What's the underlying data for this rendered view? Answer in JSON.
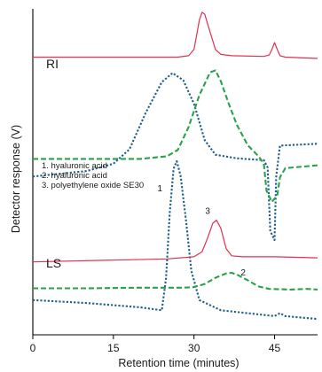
{
  "chart_data": {
    "type": "line",
    "xlabel": "Retention time (minutes)",
    "ylabel": "Detector response (V)",
    "xlim": [
      0,
      53
    ],
    "x_ticks": [
      {
        "value": 0,
        "label": "0"
      },
      {
        "value": 15,
        "label": "15"
      },
      {
        "value": 30,
        "label": "30"
      },
      {
        "value": 45,
        "label": "45"
      }
    ],
    "grid": false,
    "legend": {
      "placement": "middle-left",
      "entries": [
        "1.  hyaluronic acid",
        "2.  hyaluronic acid",
        "3.  polyethylene oxide SE30"
      ]
    },
    "panels": [
      {
        "label": "RI",
        "series": [
          {
            "id": "3",
            "color": "#e0314f",
            "style": "solid",
            "points": [
              [
                0,
                0.34
              ],
              [
                27,
                0.34
              ],
              [
                29,
                0.36
              ],
              [
                30,
                0.45
              ],
              [
                31,
                0.88
              ],
              [
                31.5,
                0.99
              ],
              [
                32,
                0.96
              ],
              [
                33,
                0.7
              ],
              [
                34,
                0.45
              ],
              [
                35,
                0.38
              ],
              [
                37,
                0.36
              ],
              [
                43,
                0.35
              ],
              [
                44,
                0.37
              ],
              [
                44.5,
                0.45
              ],
              [
                45,
                0.55
              ],
              [
                45.5,
                0.45
              ],
              [
                46,
                0.36
              ],
              [
                47,
                0.34
              ],
              [
                53,
                0.32
              ]
            ]
          },
          {
            "id": "1",
            "color": "#1f5f8b",
            "style": "dotted",
            "points": [
              [
                0,
                -0.25
              ],
              [
                10,
                -0.22
              ],
              [
                15,
                -0.18
              ],
              [
                18,
                -0.1
              ],
              [
                21,
                0.1
              ],
              [
                24,
                0.27
              ],
              [
                26,
                0.32
              ],
              [
                28,
                0.28
              ],
              [
                30,
                0.15
              ],
              [
                32,
                -0.05
              ],
              [
                34,
                -0.13
              ],
              [
                38,
                -0.15
              ],
              [
                43,
                -0.16
              ],
              [
                43.7,
                -0.2
              ],
              [
                44.2,
                -0.55
              ],
              [
                45,
                -0.6
              ],
              [
                45.3,
                -0.25
              ],
              [
                46,
                -0.08
              ],
              [
                53,
                -0.07
              ]
            ]
          },
          {
            "id": "2",
            "color": "#2aa14b",
            "style": "dashed",
            "points": [
              [
                0,
                -0.15
              ],
              [
                20,
                -0.15
              ],
              [
                25,
                -0.12
              ],
              [
                27,
                -0.05
              ],
              [
                29,
                0.2
              ],
              [
                31,
                0.55
              ],
              [
                33,
                0.8
              ],
              [
                34,
                0.82
              ],
              [
                35,
                0.7
              ],
              [
                36.5,
                0.45
              ],
              [
                38,
                0.22
              ],
              [
                40,
                0.0
              ],
              [
                42,
                -0.12
              ],
              [
                43,
                -0.2
              ],
              [
                43.5,
                -0.5
              ],
              [
                44.5,
                -0.62
              ],
              [
                45.5,
                -0.55
              ],
              [
                46,
                -0.35
              ],
              [
                47,
                -0.25
              ],
              [
                53,
                -0.22
              ]
            ]
          }
        ]
      },
      {
        "label": "LS",
        "series": [
          {
            "id": "1",
            "color": "#1f5f8b",
            "style": "dotted",
            "label": "1",
            "points": [
              [
                0,
                0.05
              ],
              [
                10,
                0.03
              ],
              [
                20,
                0.0
              ],
              [
                24,
                -0.02
              ],
              [
                24.8,
                0.2
              ],
              [
                25.5,
                0.65
              ],
              [
                26.2,
                0.95
              ],
              [
                26.8,
                1.0
              ],
              [
                27.5,
                0.9
              ],
              [
                28.5,
                0.6
              ],
              [
                29.5,
                0.25
              ],
              [
                31,
                0.05
              ],
              [
                35,
                -0.02
              ],
              [
                40,
                -0.04
              ],
              [
                45,
                -0.06
              ],
              [
                46,
                -0.04
              ],
              [
                47,
                -0.06
              ],
              [
                53,
                -0.08
              ]
            ]
          },
          {
            "id": "3",
            "color": "#e0314f",
            "style": "solid",
            "label": "3",
            "points": [
              [
                0,
                0.22
              ],
              [
                25,
                0.25
              ],
              [
                30,
                0.27
              ],
              [
                31.5,
                0.32
              ],
              [
                32.5,
                0.45
              ],
              [
                33.5,
                0.6
              ],
              [
                34.2,
                0.63
              ],
              [
                35,
                0.55
              ],
              [
                36,
                0.35
              ],
              [
                37,
                0.28
              ],
              [
                39,
                0.27
              ],
              [
                45,
                0.27
              ],
              [
                53,
                0.26
              ]
            ]
          },
          {
            "id": "2",
            "color": "#2aa14b",
            "style": "dashed",
            "label": "2",
            "points": [
              [
                0,
                0.15
              ],
              [
                10,
                0.15
              ],
              [
                20,
                0.16
              ],
              [
                25,
                0.16
              ],
              [
                28,
                0.16
              ],
              [
                30,
                0.17
              ],
              [
                32,
                0.22
              ],
              [
                34,
                0.32
              ],
              [
                36,
                0.39
              ],
              [
                37,
                0.4
              ],
              [
                38,
                0.37
              ],
              [
                40,
                0.28
              ],
              [
                42,
                0.18
              ],
              [
                44,
                0.14
              ],
              [
                48,
                0.13
              ],
              [
                51,
                0.14
              ],
              [
                53,
                0.13
              ]
            ]
          }
        ]
      }
    ]
  }
}
